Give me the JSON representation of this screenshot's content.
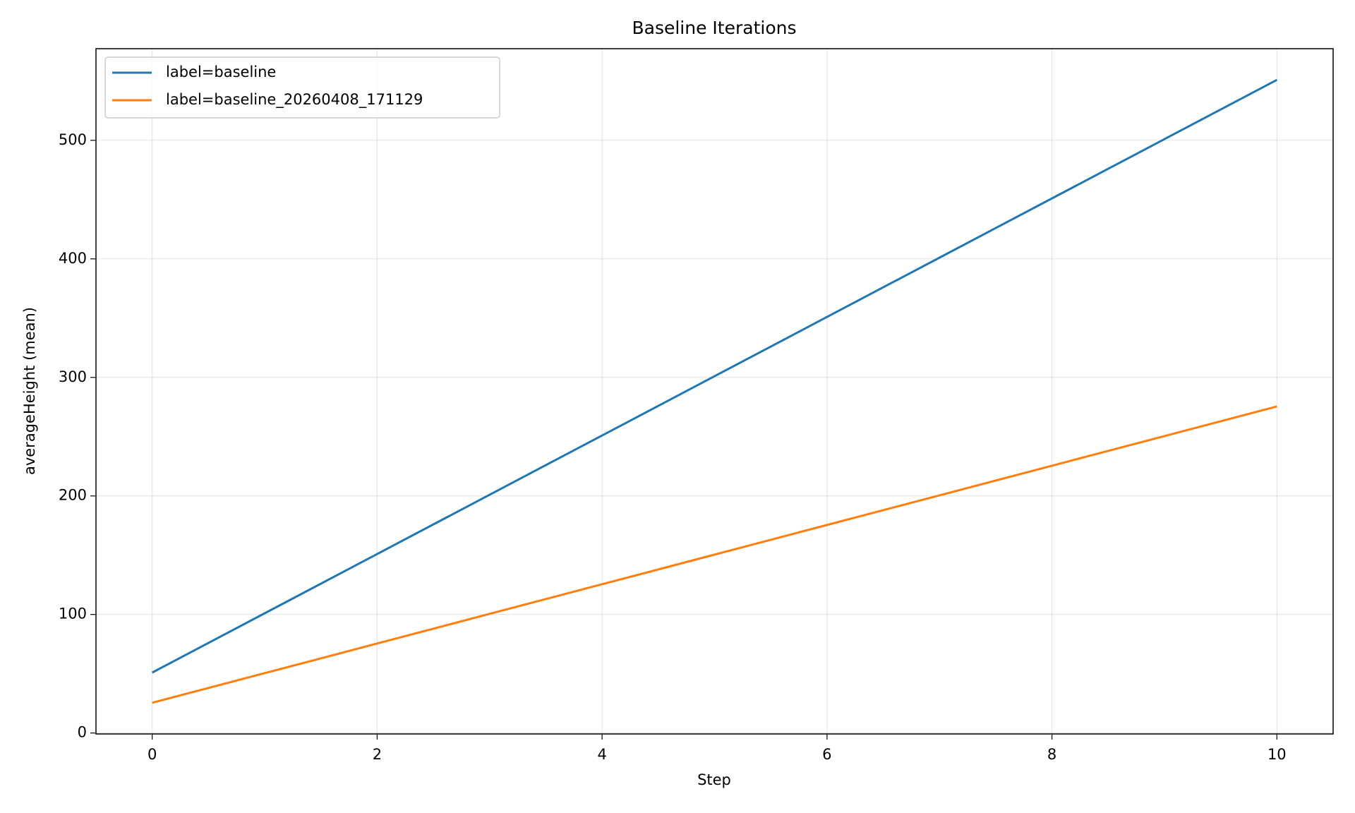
{
  "chart_data": {
    "type": "line",
    "title": "Baseline Iterations",
    "x_label": "Step",
    "y_label": "averageHeight (mean)",
    "x": [
      0,
      1,
      2,
      3,
      4,
      5,
      6,
      7,
      8,
      9,
      10
    ],
    "series": [
      {
        "name": "label=baseline",
        "color": "#1f77b4",
        "values": [
          51,
          101,
          151,
          201,
          251,
          301,
          351,
          401,
          451,
          501,
          551
        ]
      },
      {
        "name": "label=baseline_20260408_171129",
        "color": "#ff7f0e",
        "values": [
          25.5,
          50.5,
          75.5,
          100.5,
          125.5,
          150.5,
          175.5,
          200.5,
          225.5,
          250.5,
          275.5
        ]
      }
    ],
    "xlim": [
      -0.5,
      10.5
    ],
    "xticks": [
      0,
      2,
      4,
      6,
      8,
      10
    ],
    "ylim": [
      -0.8,
      577.3
    ],
    "yticks": [
      0,
      100,
      200,
      300,
      400,
      500
    ],
    "grid": true,
    "legend": "upper left"
  }
}
